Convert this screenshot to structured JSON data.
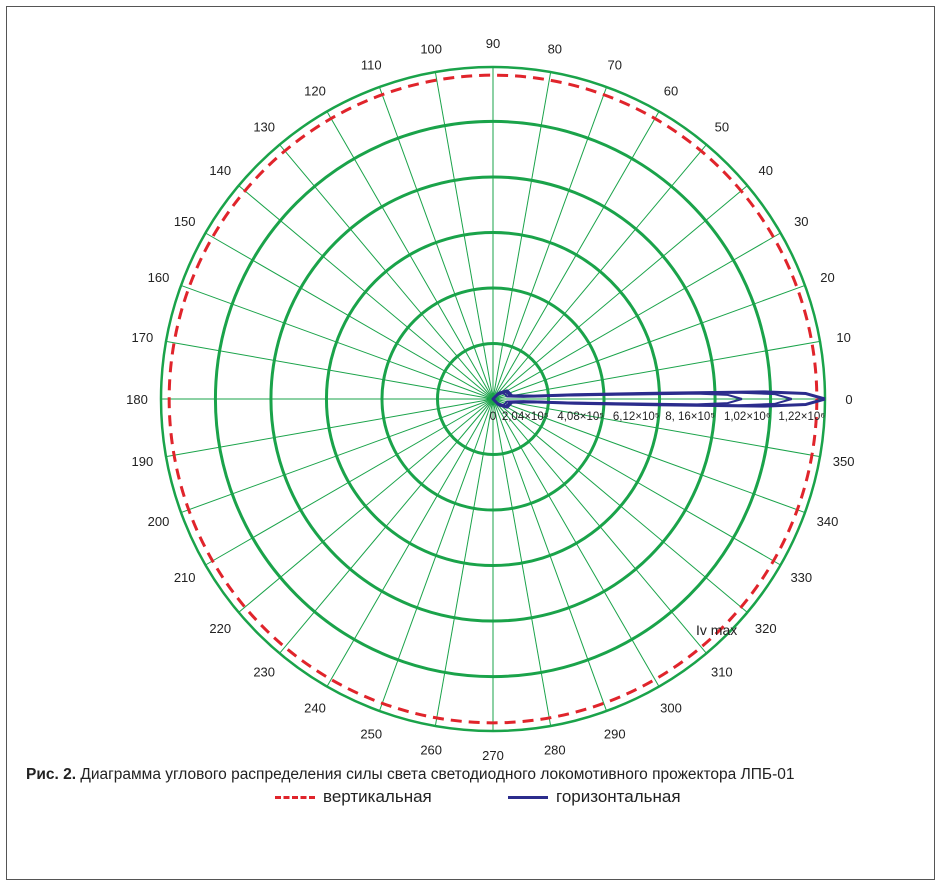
{
  "colors": {
    "grid": "#1aa34a",
    "vertical": "#e0242b",
    "horizontal": "#2b2c8c"
  },
  "chart_data": {
    "type": "polar",
    "angle_ticks": [
      "0",
      "10",
      "20",
      "30",
      "40",
      "50",
      "60",
      "70",
      "80",
      "90",
      "100",
      "110",
      "120",
      "130",
      "140",
      "150",
      "160",
      "170",
      "180",
      "190",
      "200",
      "210",
      "220",
      "230",
      "240",
      "250",
      "260",
      "270",
      "280",
      "290",
      "300",
      "310",
      "320",
      "330",
      "340",
      "350"
    ],
    "radial_tick_labels": [
      "0",
      "2,04×10⁵",
      "4,08×10⁵",
      "6,12×10⁵",
      "8, 16×10⁵",
      "1,02×10⁶",
      "1,22×10⁶"
    ],
    "radial_values": [
      0,
      204000,
      408000,
      612000,
      816000,
      1020000,
      1220000
    ],
    "rmax": 1220000,
    "annotation": "Iv max",
    "series": [
      {
        "name": "вертикальная",
        "style": "dashed",
        "color": "#e0242b",
        "points": [
          [
            0,
            1190000
          ],
          [
            45,
            1190000
          ],
          [
            90,
            1190000
          ],
          [
            135,
            1190000
          ],
          [
            180,
            1190000
          ],
          [
            225,
            1190000
          ],
          [
            270,
            1190000
          ],
          [
            315,
            1190000
          ],
          [
            360,
            1190000
          ]
        ]
      },
      {
        "name": "горизонтальная",
        "style": "solid",
        "color": "#2b2c8c",
        "points": [
          [
            0,
            1220000
          ],
          [
            1,
            1150000
          ],
          [
            1.5,
            1000000
          ],
          [
            2,
            600000
          ],
          [
            3,
            300000
          ],
          [
            4,
            150000
          ],
          [
            10,
            70000
          ],
          [
            30,
            60000
          ],
          [
            45,
            30000
          ],
          [
            90,
            0
          ],
          [
            270,
            0
          ],
          [
            315,
            30000
          ],
          [
            330,
            60000
          ],
          [
            350,
            70000
          ],
          [
            356,
            150000
          ],
          [
            357,
            300000
          ],
          [
            358,
            600000
          ],
          [
            358.5,
            1000000
          ],
          [
            359,
            1150000
          ],
          [
            360,
            1220000
          ]
        ]
      }
    ]
  },
  "legend": {
    "vertical": "вертикальная",
    "horizontal": "горизонтальная"
  },
  "caption": {
    "label": "Рис. 2.",
    "text": " Диаграмма углового распределения силы света светодиодного локомотивного прожектора ЛПБ-01"
  }
}
